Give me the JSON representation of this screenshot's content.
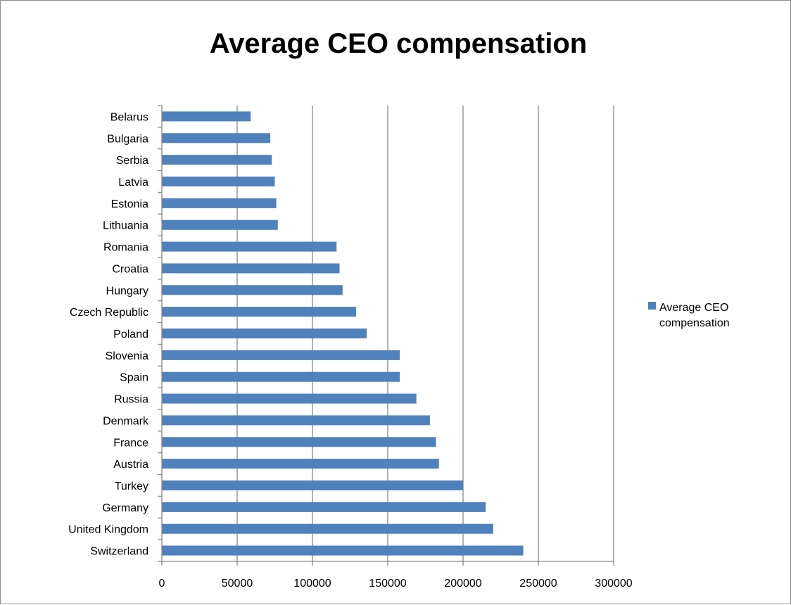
{
  "chart_data": {
    "type": "bar",
    "orientation": "horizontal",
    "title": "Average CEO compensation",
    "xlabel": "",
    "ylabel": "",
    "categories": [
      "Belarus",
      "Bulgaria",
      "Serbia",
      "Latvia",
      "Estonia",
      "Lithuania",
      "Romania",
      "Croatia",
      "Hungary",
      "Czech Republic",
      "Poland",
      "Slovenia",
      "Spain",
      "Russia",
      "Denmark",
      "France",
      "Austria",
      "Turkey",
      "Germany",
      "United Kingdom",
      "Switzerland"
    ],
    "series": [
      {
        "name": "Average CEO compensation",
        "color": "#4f81bd",
        "values": [
          59000,
          72000,
          73000,
          75000,
          76000,
          77000,
          116000,
          118000,
          120000,
          129000,
          136000,
          158000,
          158000,
          169000,
          178000,
          182000,
          184000,
          200000,
          215000,
          220000,
          240000
        ]
      }
    ],
    "xlim": [
      0,
      300000
    ],
    "x_ticks": [
      "0",
      "50000",
      "100000",
      "150000",
      "200000",
      "250000",
      "300000"
    ],
    "grid": "vertical major gridlines",
    "legend": "right"
  }
}
